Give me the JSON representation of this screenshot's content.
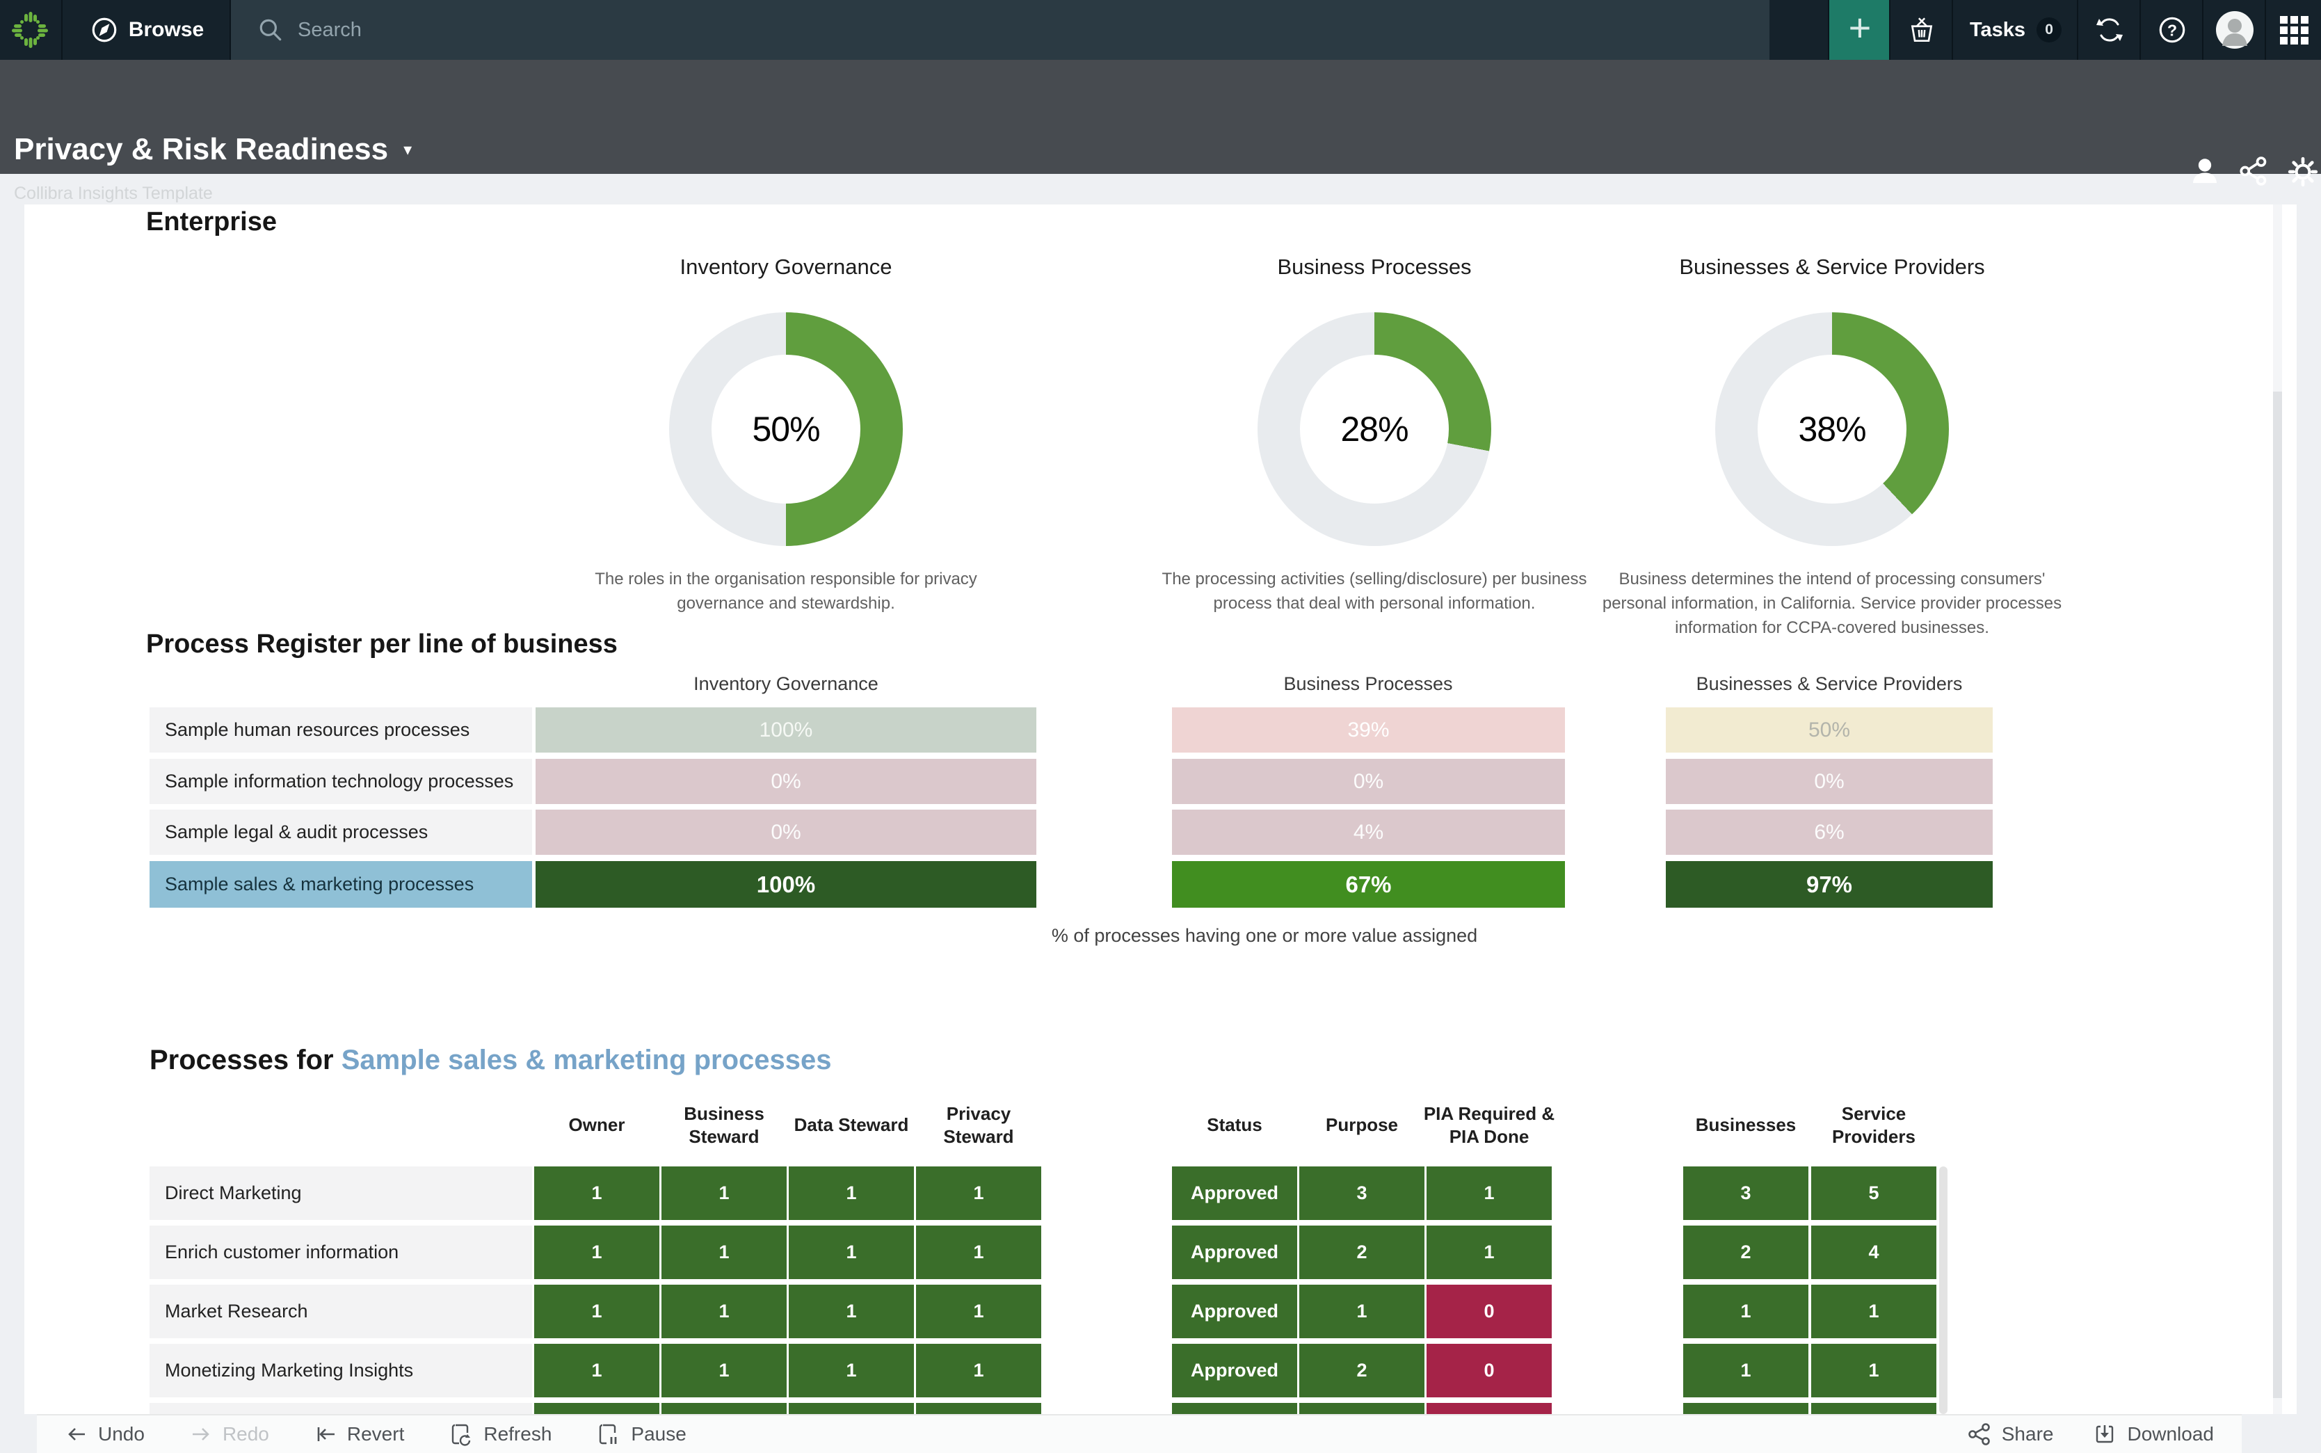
{
  "topbar": {
    "browse_label": "Browse",
    "search_placeholder": "Search",
    "plus_glyph": "+",
    "tasks_label": "Tasks",
    "tasks_count": "0"
  },
  "page_header": {
    "title": "Privacy & Risk Readiness",
    "caret_glyph": "▾",
    "subtitle": "Collibra Insights Template"
  },
  "enterprise": {
    "title": "Enterprise",
    "donuts": [
      {
        "title": "Inventory Governance",
        "pct": 50,
        "pct_label": "50%",
        "caption": "The roles in the organisation responsible for privacy governance and stewardship."
      },
      {
        "title": "Business Processes",
        "pct": 28,
        "pct_label": "28%",
        "caption": "The processing activities (selling/disclosure) per business process that deal with personal information."
      },
      {
        "title": "Businesses & Service Providers",
        "pct": 38,
        "pct_label": "38%",
        "caption": "Business determines the intend of processing consumers' personal information, in California. Service provider processes information for CCPA-covered businesses."
      }
    ]
  },
  "register": {
    "title": "Process Register per line of business",
    "columns": [
      "Inventory Governance",
      "Business Processes",
      "Businesses & Service Providers"
    ],
    "rows": [
      {
        "label": "Sample human resources processes",
        "selected": false,
        "cells": [
          {
            "text": "100%",
            "tone": "sage"
          },
          {
            "text": "39%",
            "tone": "pink"
          },
          {
            "text": "50%",
            "tone": "cream"
          }
        ]
      },
      {
        "label": "Sample information technology processes",
        "selected": false,
        "cells": [
          {
            "text": "0%",
            "tone": "rose"
          },
          {
            "text": "0%",
            "tone": "rose"
          },
          {
            "text": "0%",
            "tone": "rose"
          }
        ]
      },
      {
        "label": "Sample legal & audit processes",
        "selected": false,
        "cells": [
          {
            "text": "0%",
            "tone": "rose"
          },
          {
            "text": "4%",
            "tone": "rose"
          },
          {
            "text": "6%",
            "tone": "rose"
          }
        ]
      },
      {
        "label": "Sample sales & marketing processes",
        "selected": true,
        "cells": [
          {
            "text": "100%",
            "tone": "dgreen"
          },
          {
            "text": "67%",
            "tone": "mgreen"
          },
          {
            "text": "97%",
            "tone": "dgreen"
          }
        ]
      }
    ],
    "footnote": "% of processes having one or more value assigned"
  },
  "processes": {
    "title_prefix": "Processes for",
    "title_link": "Sample sales & marketing processes",
    "headers": [
      "Owner",
      "Business Steward",
      "Data Steward",
      "Privacy Steward",
      "Status",
      "Purpose",
      "PIA Required & PIA Done",
      "Businesses",
      "Service Providers"
    ],
    "rows": [
      {
        "label": "Direct Marketing",
        "values": [
          "1",
          "1",
          "1",
          "1",
          "Approved",
          "3",
          "1",
          "3",
          "5"
        ],
        "red": [],
        "partial": false
      },
      {
        "label": "Enrich customer information",
        "values": [
          "1",
          "1",
          "1",
          "1",
          "Approved",
          "2",
          "1",
          "2",
          "4"
        ],
        "red": [],
        "partial": false
      },
      {
        "label": "Market Research",
        "values": [
          "1",
          "1",
          "1",
          "1",
          "Approved",
          "1",
          "0",
          "1",
          "1"
        ],
        "red": [
          6
        ],
        "partial": false
      },
      {
        "label": "Monetizing Marketing Insights",
        "values": [
          "1",
          "1",
          "1",
          "1",
          "Approved",
          "2",
          "0",
          "1",
          "1"
        ],
        "red": [
          6
        ],
        "partial": false
      },
      {
        "label": "",
        "values": [
          "",
          "",
          "",
          "",
          "",
          "",
          "",
          "",
          ""
        ],
        "red": [
          6
        ],
        "partial": true
      }
    ]
  },
  "toolbar": {
    "undo": "Undo",
    "redo": "Redo",
    "revert": "Revert",
    "refresh": "Refresh",
    "pause": "Pause",
    "share": "Share",
    "download": "Download"
  },
  "colors": {
    "nav_bg": "#15222b",
    "search_bg": "#2b3a43",
    "accent_green": "#1e7b67",
    "header_bg": "#474b50",
    "donut_fill": "#609e3e",
    "donut_track": "#e8ebee",
    "link_blue": "#76a3c8",
    "selected_row_blue": "#8fc0d6",
    "tones": {
      "sage": {
        "bg": "#c8d3c9",
        "fg": "#f6f9f5"
      },
      "pink": {
        "bg": "#efd4d3",
        "fg": "#ffffff"
      },
      "cream": {
        "bg": "#f2ebd1",
        "fg": "#b3b4ab"
      },
      "rose": {
        "bg": "#dbc8cc",
        "fg": "#fcfcfc"
      },
      "dgreen": {
        "bg": "#2d5b25",
        "fg": "#ffffff"
      },
      "mgreen": {
        "bg": "#418e20",
        "fg": "#ffffff"
      },
      "fgreen": {
        "bg": "#3a6e2a",
        "fg": "#ffffff"
      },
      "red": {
        "bg": "#a52348",
        "fg": "#ffffff"
      }
    }
  }
}
